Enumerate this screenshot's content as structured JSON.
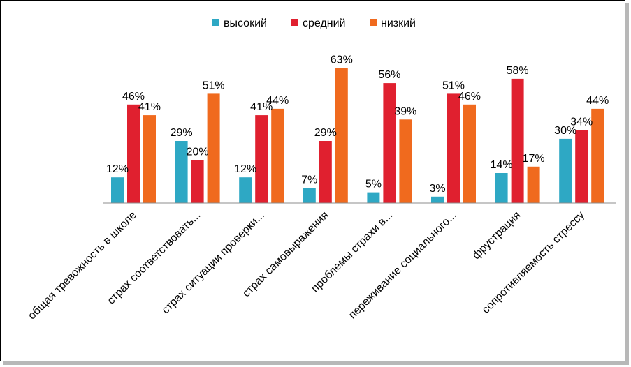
{
  "chart_data": {
    "type": "bar",
    "categories": [
      "общая тревожность в школе",
      "страх соответствовать...",
      "страх ситуации проверки...",
      "страх самовыражения",
      "проблемы страхи в...",
      "переживание социального...",
      "фрустрация",
      "сопротивляемость стрессу"
    ],
    "series": [
      {
        "name": "высокий",
        "color": "#2ea8c4",
        "values": [
          12,
          29,
          12,
          7,
          5,
          3,
          14,
          30
        ]
      },
      {
        "name": "средний",
        "color": "#e0202f",
        "values": [
          46,
          20,
          41,
          29,
          56,
          51,
          58,
          34
        ]
      },
      {
        "name": "низкий",
        "color": "#f06a1e",
        "values": [
          41,
          51,
          44,
          63,
          39,
          46,
          17,
          44
        ]
      }
    ],
    "value_suffix": "%",
    "ylim": [
      0,
      70
    ],
    "legend_position": "top",
    "grid": false,
    "title": "",
    "xlabel": "",
    "ylabel": ""
  }
}
